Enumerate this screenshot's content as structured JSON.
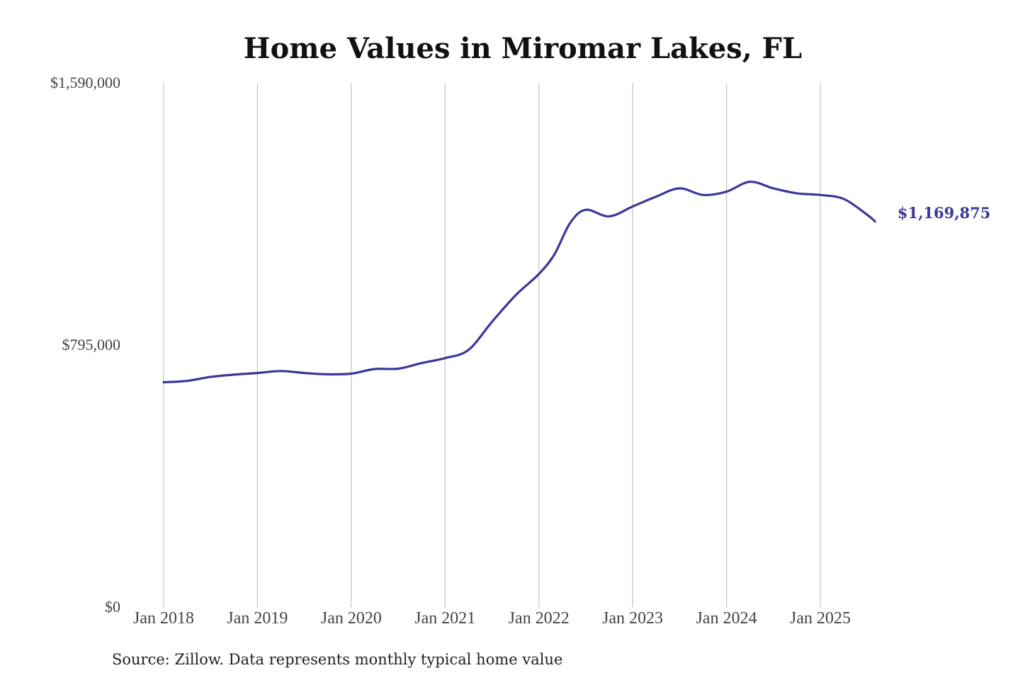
{
  "chart_data": {
    "type": "line",
    "title": "Home Values in Miromar Lakes, FL",
    "ylim": [
      0,
      1590000
    ],
    "yticks": [
      {
        "value": 1590000,
        "label": "$1,590,000"
      },
      {
        "value": 795000,
        "label": "$795,000"
      },
      {
        "value": 0,
        "label": "$0"
      }
    ],
    "xticks": [
      {
        "value": "2018-01",
        "label": "Jan 2018"
      },
      {
        "value": "2019-01",
        "label": "Jan 2019"
      },
      {
        "value": "2020-01",
        "label": "Jan 2020"
      },
      {
        "value": "2021-01",
        "label": "Jan 2021"
      },
      {
        "value": "2022-01",
        "label": "Jan 2022"
      },
      {
        "value": "2023-01",
        "label": "Jan 2023"
      },
      {
        "value": "2024-01",
        "label": "Jan 2024"
      },
      {
        "value": "2025-01",
        "label": "Jan 2025"
      }
    ],
    "grid": "vertical",
    "line_color": "#3b3799",
    "end_label": "$1,169,875",
    "series": [
      {
        "points": [
          [
            "2018-01",
            682000
          ],
          [
            "2018-04",
            686000
          ],
          [
            "2018-07",
            698000
          ],
          [
            "2018-10",
            705000
          ],
          [
            "2019-01",
            710000
          ],
          [
            "2019-04",
            716000
          ],
          [
            "2019-07",
            710000
          ],
          [
            "2019-10",
            706000
          ],
          [
            "2020-01",
            708000
          ],
          [
            "2020-04",
            722000
          ],
          [
            "2020-07",
            723000
          ],
          [
            "2020-10",
            740000
          ],
          [
            "2021-01",
            755000
          ],
          [
            "2021-04",
            780000
          ],
          [
            "2021-07",
            865000
          ],
          [
            "2021-10",
            945000
          ],
          [
            "2022-01",
            1010000
          ],
          [
            "2022-03",
            1070000
          ],
          [
            "2022-05",
            1165000
          ],
          [
            "2022-07",
            1205000
          ],
          [
            "2022-10",
            1185000
          ],
          [
            "2023-01",
            1215000
          ],
          [
            "2023-04",
            1245000
          ],
          [
            "2023-07",
            1270000
          ],
          [
            "2023-10",
            1250000
          ],
          [
            "2024-01",
            1260000
          ],
          [
            "2024-04",
            1290000
          ],
          [
            "2024-07",
            1270000
          ],
          [
            "2024-10",
            1255000
          ],
          [
            "2025-01",
            1250000
          ],
          [
            "2025-04",
            1238000
          ],
          [
            "2025-07",
            1190000
          ],
          [
            "2025-08",
            1169875
          ]
        ]
      }
    ]
  },
  "source_note": "Source: Zillow. Data represents monthly typical home value"
}
